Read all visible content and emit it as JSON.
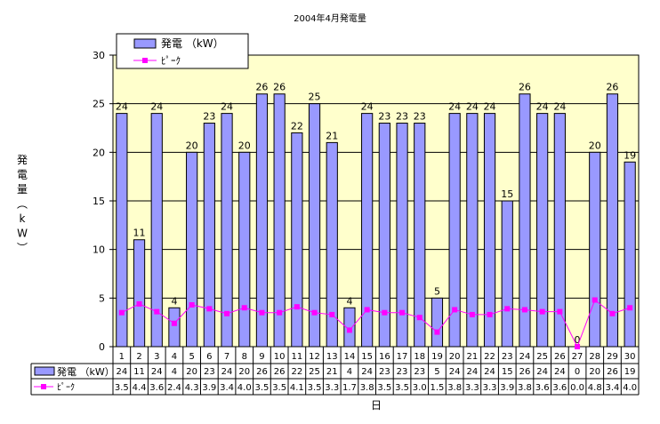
{
  "chart_data": {
    "type": "bar",
    "title": "2004年4月発電量",
    "xlabel": "日",
    "ylabel": "発電量（kW）",
    "ylim": [
      0,
      30
    ],
    "yticks": [
      0,
      5,
      10,
      15,
      20,
      25,
      30
    ],
    "grid": true,
    "legend_position": "top-left",
    "categories": [
      "1",
      "2",
      "3",
      "4",
      "5",
      "6",
      "7",
      "8",
      "9",
      "10",
      "11",
      "12",
      "13",
      "14",
      "15",
      "16",
      "17",
      "18",
      "19",
      "20",
      "21",
      "22",
      "23",
      "24",
      "25",
      "26",
      "27",
      "28",
      "29",
      "30"
    ],
    "series": [
      {
        "name": "発電 （kW）",
        "type": "bar",
        "color": "#9999FF",
        "values": [
          24,
          11,
          24,
          4,
          20,
          23,
          24,
          20,
          26,
          26,
          22,
          25,
          21,
          4,
          24,
          23,
          23,
          23,
          5,
          24,
          24,
          24,
          15,
          26,
          24,
          24,
          0,
          20,
          26,
          19
        ],
        "value_labels": [
          "24",
          "11",
          "24",
          "4",
          "20",
          "23",
          "24",
          "20",
          "26",
          "26",
          "22",
          "25",
          "21",
          "4",
          "24",
          "23",
          "23",
          "23",
          "5",
          "24",
          "24",
          "24",
          "15",
          "26",
          "24",
          "24",
          "0",
          "20",
          "26",
          "19"
        ]
      },
      {
        "name": "ﾋﾟｰｸ",
        "type": "line",
        "color": "#FF00FF",
        "values": [
          3.5,
          4.4,
          3.6,
          2.4,
          4.3,
          3.9,
          3.4,
          4.0,
          3.5,
          3.5,
          4.1,
          3.5,
          3.3,
          1.7,
          3.8,
          3.5,
          3.5,
          3.0,
          1.5,
          3.8,
          3.3,
          3.3,
          3.9,
          3.8,
          3.6,
          3.6,
          0.0,
          4.8,
          3.4,
          4.0
        ],
        "value_labels": [
          "3.5",
          "4.4",
          "3.6",
          "2.4",
          "4.3",
          "3.9",
          "3.4",
          "4.0",
          "3.5",
          "3.5",
          "4.1",
          "3.5",
          "3.3",
          "1.7",
          "3.8",
          "3.5",
          "3.5",
          "3.0",
          "1.5",
          "3.8",
          "3.3",
          "3.3",
          "3.9",
          "3.8",
          "3.6",
          "3.6",
          "0.0",
          "4.8",
          "3.4",
          "4.0"
        ]
      }
    ],
    "plot_background": "#FFFFCC"
  }
}
